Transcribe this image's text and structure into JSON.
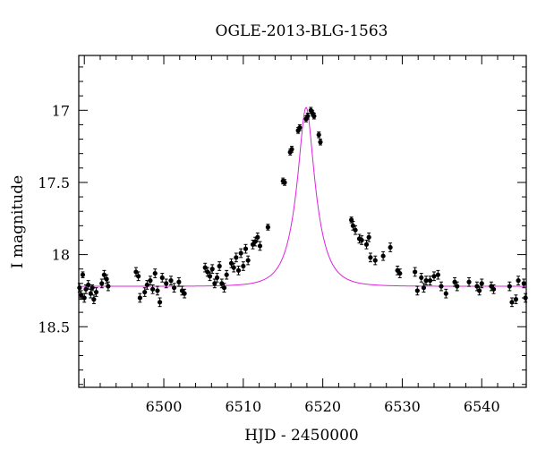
{
  "chart_data": {
    "type": "scatter",
    "title": "OGLE-2013-BLG-1563",
    "xlabel": "HJD - 2450000",
    "ylabel": "I magnitude",
    "xlim": [
      6489.3,
      6545.6
    ],
    "ylim": [
      18.92,
      16.62
    ],
    "y_inverted": true,
    "x_ticks": [
      6500,
      6510,
      6520,
      6530,
      6540
    ],
    "y_ticks": [
      17,
      17.5,
      18,
      18.5
    ],
    "x_tick_labels": [
      "6500",
      "6510",
      "6520",
      "6530",
      "6540"
    ],
    "y_tick_labels": [
      "17",
      "17.5",
      "18",
      "18.5"
    ],
    "model": {
      "color": "#dd22dd",
      "t0": 6517.9,
      "baseline": 18.22,
      "peak": 16.98,
      "tE": 2.4
    },
    "observations": {
      "color": "#000000",
      "points": [
        [
          6489.4,
          18.23,
          0.03
        ],
        [
          6489.6,
          18.28,
          0.03
        ],
        [
          6489.8,
          18.14,
          0.02
        ],
        [
          6490.0,
          18.3,
          0.03
        ],
        [
          6490.2,
          18.24,
          0.03
        ],
        [
          6490.5,
          18.21,
          0.03
        ],
        [
          6490.8,
          18.27,
          0.03
        ],
        [
          6491.0,
          18.23,
          0.02
        ],
        [
          6491.2,
          18.31,
          0.03
        ],
        [
          6491.5,
          18.26,
          0.03
        ],
        [
          6492.2,
          18.2,
          0.03
        ],
        [
          6492.5,
          18.14,
          0.03
        ],
        [
          6492.8,
          18.17,
          0.03
        ],
        [
          6493.0,
          18.22,
          0.03
        ],
        [
          6496.5,
          18.12,
          0.03
        ],
        [
          6496.8,
          18.15,
          0.03
        ],
        [
          6497.0,
          18.3,
          0.03
        ],
        [
          6497.6,
          18.26,
          0.03
        ],
        [
          6497.9,
          18.21,
          0.03
        ],
        [
          6498.3,
          18.18,
          0.03
        ],
        [
          6498.6,
          18.24,
          0.03
        ],
        [
          6498.9,
          18.13,
          0.03
        ],
        [
          6499.2,
          18.25,
          0.03
        ],
        [
          6499.5,
          18.33,
          0.03
        ],
        [
          6499.8,
          18.16,
          0.03
        ],
        [
          6500.3,
          18.2,
          0.03
        ],
        [
          6500.9,
          18.18,
          0.03
        ],
        [
          6501.3,
          18.23,
          0.03
        ],
        [
          6501.9,
          18.19,
          0.03
        ],
        [
          6502.3,
          18.25,
          0.03
        ],
        [
          6502.6,
          18.27,
          0.03
        ],
        [
          6505.2,
          18.09,
          0.03
        ],
        [
          6505.5,
          18.12,
          0.03
        ],
        [
          6505.8,
          18.15,
          0.03
        ],
        [
          6506.1,
          18.1,
          0.03
        ],
        [
          6506.4,
          18.2,
          0.03
        ],
        [
          6506.7,
          18.16,
          0.03
        ],
        [
          6507.0,
          18.08,
          0.03
        ],
        [
          6507.3,
          18.2,
          0.03
        ],
        [
          6507.6,
          18.23,
          0.03
        ],
        [
          6507.9,
          18.14,
          0.03
        ],
        [
          6508.5,
          18.06,
          0.03
        ],
        [
          6508.8,
          18.09,
          0.03
        ],
        [
          6509.1,
          18.02,
          0.03
        ],
        [
          6509.4,
          18.11,
          0.03
        ],
        [
          6509.7,
          17.99,
          0.03
        ],
        [
          6510.0,
          18.08,
          0.03
        ],
        [
          6510.3,
          17.96,
          0.03
        ],
        [
          6510.6,
          18.04,
          0.03
        ],
        [
          6511.2,
          17.93,
          0.03
        ],
        [
          6511.5,
          17.91,
          0.03
        ],
        [
          6511.8,
          17.88,
          0.03
        ],
        [
          6512.1,
          17.94,
          0.03
        ],
        [
          6513.1,
          17.81,
          0.02
        ],
        [
          6515.0,
          17.49,
          0.02
        ],
        [
          6515.2,
          17.5,
          0.02
        ],
        [
          6515.9,
          17.29,
          0.02
        ],
        [
          6516.1,
          17.27,
          0.02
        ],
        [
          6516.9,
          17.14,
          0.02
        ],
        [
          6517.1,
          17.12,
          0.02
        ],
        [
          6517.9,
          17.06,
          0.02
        ],
        [
          6518.1,
          17.04,
          0.02
        ],
        [
          6518.5,
          17.0,
          0.02
        ],
        [
          6518.7,
          17.02,
          0.02
        ],
        [
          6518.9,
          17.04,
          0.02
        ],
        [
          6519.5,
          17.17,
          0.02
        ],
        [
          6519.7,
          17.22,
          0.02
        ],
        [
          6523.6,
          17.76,
          0.02
        ],
        [
          6523.8,
          17.8,
          0.03
        ],
        [
          6524.1,
          17.83,
          0.03
        ],
        [
          6524.6,
          17.89,
          0.03
        ],
        [
          6524.9,
          17.9,
          0.03
        ],
        [
          6525.5,
          17.93,
          0.03
        ],
        [
          6525.8,
          17.88,
          0.03
        ],
        [
          6526.0,
          18.02,
          0.03
        ],
        [
          6526.6,
          18.04,
          0.03
        ],
        [
          6527.6,
          18.01,
          0.03
        ],
        [
          6528.5,
          17.95,
          0.03
        ],
        [
          6529.4,
          18.11,
          0.03
        ],
        [
          6529.7,
          18.13,
          0.03
        ],
        [
          6531.6,
          18.12,
          0.03
        ],
        [
          6531.9,
          18.25,
          0.03
        ],
        [
          6532.4,
          18.16,
          0.03
        ],
        [
          6532.7,
          18.23,
          0.03
        ],
        [
          6533.0,
          18.18,
          0.03
        ],
        [
          6533.5,
          18.18,
          0.03
        ],
        [
          6534.0,
          18.15,
          0.03
        ],
        [
          6534.5,
          18.14,
          0.03
        ],
        [
          6534.9,
          18.22,
          0.03
        ],
        [
          6535.5,
          18.27,
          0.03
        ],
        [
          6536.6,
          18.19,
          0.03
        ],
        [
          6536.9,
          18.22,
          0.03
        ],
        [
          6538.4,
          18.19,
          0.03
        ],
        [
          6539.4,
          18.22,
          0.03
        ],
        [
          6539.7,
          18.25,
          0.03
        ],
        [
          6540.0,
          18.2,
          0.03
        ],
        [
          6541.2,
          18.22,
          0.03
        ],
        [
          6541.5,
          18.24,
          0.03
        ],
        [
          6543.5,
          18.22,
          0.03
        ],
        [
          6543.8,
          18.33,
          0.03
        ],
        [
          6544.3,
          18.31,
          0.03
        ],
        [
          6544.6,
          18.18,
          0.03
        ],
        [
          6545.3,
          18.2,
          0.03
        ],
        [
          6545.5,
          18.3,
          0.03
        ]
      ]
    }
  }
}
